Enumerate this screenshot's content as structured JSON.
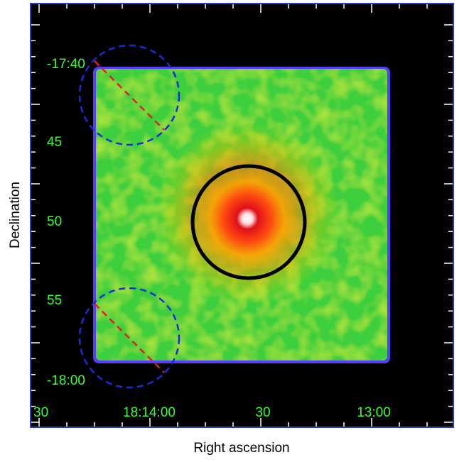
{
  "image": {
    "x_label": "Right ascension",
    "y_label": "Declination",
    "x_tick_labels": [
      "30",
      "18:14:00",
      "30",
      "13:00"
    ],
    "y_tick_labels": [
      "-17:40",
      "45",
      "50",
      "55",
      "-18:00"
    ]
  }
}
